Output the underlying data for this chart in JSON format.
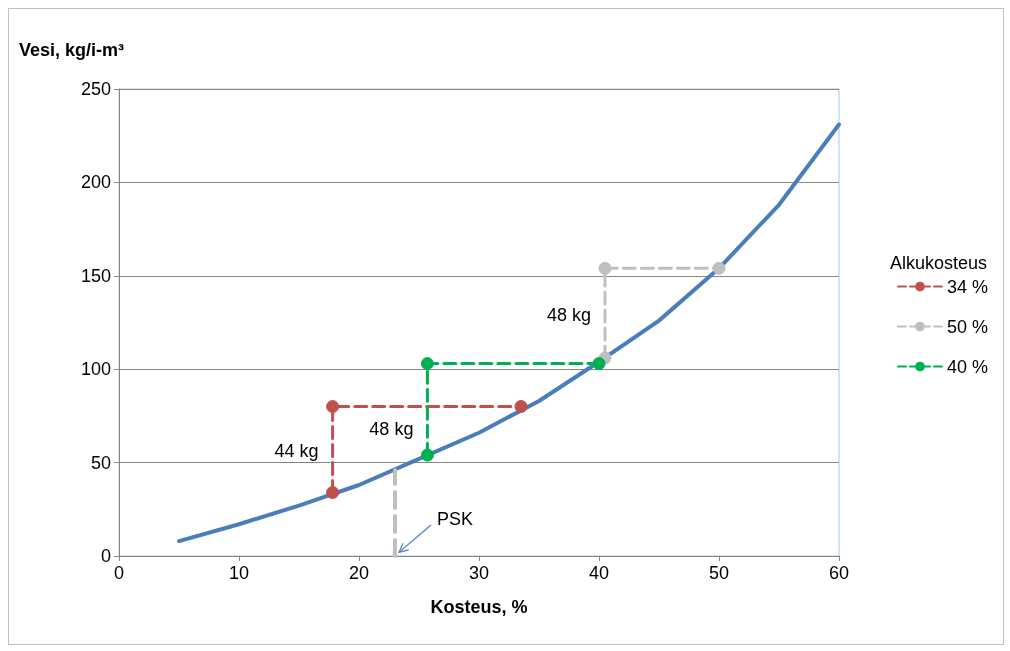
{
  "chart_data": {
    "type": "line",
    "xlabel": "Kosteus, %",
    "ylabel": "Vesi, kg/i-m³",
    "legend_title": "Alkukosteus",
    "series": [
      {
        "color": "#4a7ebb",
        "marker": "none",
        "line_style": "solid",
        "x": [
          5,
          10,
          15,
          20,
          25,
          30,
          35,
          40,
          45,
          50,
          55,
          60
        ],
        "values": [
          8,
          17,
          27,
          38,
          52,
          66,
          83,
          104,
          126,
          154,
          188,
          231
        ]
      },
      {
        "name": "34 %",
        "color": "#c0504d",
        "marker": "circle",
        "line_style": "dashed",
        "x": [
          17.8,
          17.8,
          33.5
        ],
        "values": [
          34,
          80,
          80
        ]
      },
      {
        "name": "50 %",
        "color": "#bfbfbf",
        "marker": "circle",
        "line_style": "dashed",
        "x": [
          40.5,
          40.5,
          50
        ],
        "values": [
          106,
          154,
          154
        ]
      },
      {
        "name": "40 %",
        "color": "#00b050",
        "marker": "circle",
        "line_style": "dashed",
        "x": [
          25.7,
          25.7,
          40
        ],
        "values": [
          54,
          103,
          103
        ]
      },
      {
        "color": "#bfbfbf",
        "marker": "none",
        "line_style": "dashed",
        "x": [
          23,
          23
        ],
        "values": [
          0,
          46
        ]
      }
    ],
    "annotations": [
      {
        "text": "44 kg",
        "x": 17.8,
        "y": 56
      },
      {
        "text": "48 kg",
        "x": 25.7,
        "y": 68
      },
      {
        "text": "48 kg",
        "x": 40.5,
        "y": 129
      },
      {
        "text": "PSK",
        "x": 23,
        "y": 0
      }
    ],
    "xlim": [
      0,
      60
    ],
    "xticks": [
      0,
      10,
      20,
      30,
      40,
      50,
      60
    ],
    "ylim": [
      0,
      250
    ],
    "yticks": [
      0,
      50,
      100,
      150,
      200,
      250
    ],
    "grid": "y",
    "legend": "right"
  }
}
